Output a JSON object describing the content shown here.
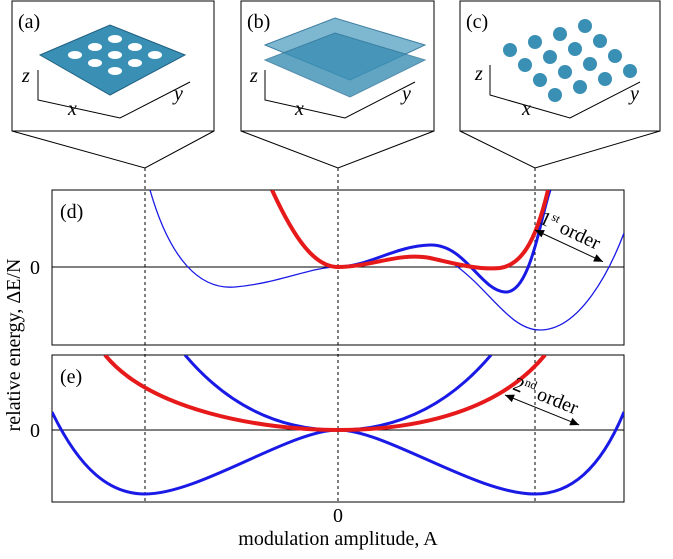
{
  "panels": {
    "a": {
      "label": "(a)",
      "x": "x",
      "y": "y",
      "z": "z"
    },
    "b": {
      "label": "(b)",
      "x": "x",
      "y": "y",
      "z": "z"
    },
    "c": {
      "label": "(c)",
      "x": "x",
      "y": "y",
      "z": "z"
    },
    "d": {
      "label": "(d)",
      "zero": "0",
      "order": {
        "number": "1",
        "suffix": "st",
        "text": "order"
      }
    },
    "e": {
      "label": "(e)",
      "zero": "0",
      "order": {
        "number": "2",
        "suffix": "nd",
        "text": "order"
      }
    }
  },
  "axes": {
    "x_zero": "0",
    "x_label": "modulation amplitude, A",
    "y_label": "relative energy, ΔE/N"
  }
}
